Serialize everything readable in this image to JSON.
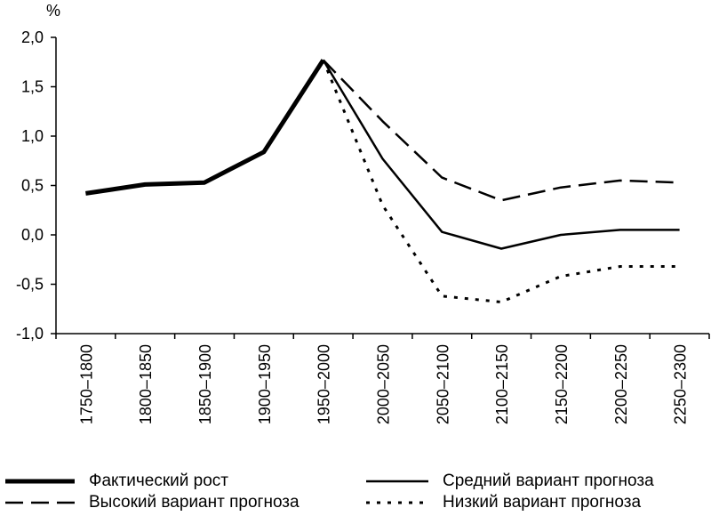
{
  "chart_data": {
    "type": "line",
    "unit_label": "%",
    "categories": [
      "1750–1800",
      "1800–1850",
      "1850–1900",
      "1900–1950",
      "1950–2000",
      "2000–2050",
      "2050–2100",
      "2100–2150",
      "2150–2200",
      "2200–2250",
      "2250–2300"
    ],
    "ylim": [
      -1.0,
      2.0
    ],
    "y_ticks": [
      2.0,
      1.5,
      1.0,
      0.5,
      0.0,
      -0.5,
      -1.0
    ],
    "y_tick_labels": [
      "2,0",
      "1,5",
      "1,0",
      "0,5",
      "0,0",
      "-0,5",
      "-1,0"
    ],
    "grid": false,
    "legend_position": "bottom",
    "series": [
      {
        "name": "Фактический рост",
        "style": "thick-solid",
        "values": [
          0.42,
          0.51,
          0.53,
          0.84,
          1.77,
          null,
          null,
          null,
          null,
          null,
          null
        ]
      },
      {
        "name": "Средний вариант прогноза",
        "style": "solid",
        "values": [
          null,
          null,
          null,
          null,
          1.77,
          0.77,
          0.03,
          -0.14,
          0.0,
          0.05,
          0.05
        ]
      },
      {
        "name": "Высокий вариант прогноза",
        "style": "dashed",
        "values": [
          null,
          null,
          null,
          null,
          1.77,
          1.15,
          0.58,
          0.35,
          0.48,
          0.55,
          0.53
        ]
      },
      {
        "name": "Низкий вариант прогноза",
        "style": "dotted",
        "values": [
          null,
          null,
          null,
          null,
          1.77,
          0.3,
          -0.62,
          -0.68,
          -0.42,
          -0.32,
          -0.32
        ]
      }
    ]
  },
  "legend": {
    "actual": "Фактический рост",
    "high": "Высокий вариант прогноза",
    "medium": "Средний вариант прогноза",
    "low": "Низкий вариант прогноза"
  }
}
